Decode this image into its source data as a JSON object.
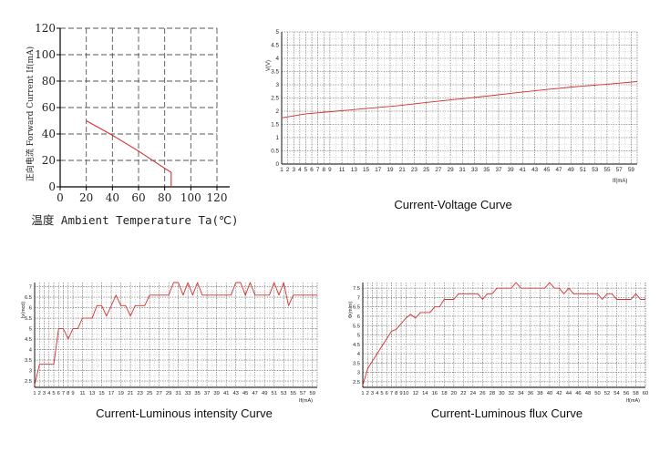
{
  "colors": {
    "curve": "#d43030",
    "grid": "#555555",
    "axis": "#000000"
  },
  "chart_data": [
    {
      "type": "line",
      "xlabel": "温度 Ambient Temperature Ta(℃)",
      "ylabel": "正向电流 Forward Current If(mA)",
      "x_ticks": [
        "0",
        "20",
        "40",
        "60",
        "80",
        "100",
        "120"
      ],
      "y_ticks": [
        "0",
        "20",
        "40",
        "60",
        "80",
        "100",
        "120"
      ],
      "xlim": [
        0,
        120
      ],
      "ylim": [
        0,
        120
      ],
      "grid": true,
      "x": [
        20,
        40,
        60,
        80,
        85,
        85
      ],
      "y": [
        50,
        39,
        27,
        14,
        11,
        0
      ]
    },
    {
      "type": "line",
      "caption": "Current-Voltage Curve",
      "xlabel": "If(mA)",
      "ylabel": "V(V)",
      "x_ticks": [
        "1",
        "2",
        "3",
        "4",
        "5",
        "6",
        "7",
        "8",
        "9",
        "11",
        "13",
        "15",
        "17",
        "19",
        "21",
        "23",
        "25",
        "27",
        "29",
        "31",
        "33",
        "35",
        "37",
        "39",
        "41",
        "43",
        "45",
        "47",
        "49",
        "51",
        "53",
        "55",
        "57",
        "59"
      ],
      "y_ticks": [
        "0",
        "0.5",
        "1",
        "1.5",
        "2",
        "2.5",
        "3",
        "3.5",
        "4",
        "4.5",
        "5"
      ],
      "xlim": [
        1,
        60
      ],
      "ylim": [
        0,
        5
      ],
      "grid": true,
      "x": [
        1,
        5,
        10,
        15,
        20,
        25,
        30,
        35,
        40,
        45,
        50,
        55,
        60
      ],
      "y": [
        1.75,
        1.9,
        2.0,
        2.1,
        2.2,
        2.33,
        2.45,
        2.57,
        2.7,
        2.82,
        2.93,
        3.02,
        3.12
      ]
    },
    {
      "type": "line",
      "caption": "Current-Luminous intensity Curve",
      "xlabel": "If(mA)",
      "ylabel": "Iv(mcd)",
      "x_ticks": [
        "1",
        "2",
        "3",
        "4",
        "5",
        "6",
        "7",
        "8",
        "9",
        "11",
        "13",
        "15",
        "17",
        "19",
        "21",
        "23",
        "25",
        "27",
        "29",
        "31",
        "33",
        "35",
        "37",
        "39",
        "41",
        "43",
        "45",
        "47",
        "49",
        "51",
        "53",
        "55",
        "57",
        "59"
      ],
      "y_ticks": [
        "2.5",
        "3",
        "3.5",
        "4",
        "4.5",
        "5",
        "5.5",
        "6",
        "6.5",
        "7"
      ],
      "xlim": [
        1,
        60
      ],
      "ylim": [
        2.2,
        7.2
      ],
      "grid": true,
      "x": [
        1,
        2,
        3,
        4,
        5,
        6,
        7,
        8,
        9,
        10,
        11,
        12,
        13,
        14,
        15,
        16,
        17,
        18,
        19,
        20,
        21,
        22,
        23,
        24,
        25,
        26,
        27,
        28,
        29,
        30,
        31,
        32,
        33,
        34,
        35,
        36,
        37,
        38,
        39,
        40,
        41,
        42,
        43,
        44,
        45,
        46,
        47,
        48,
        49,
        50,
        51,
        52,
        53,
        54,
        55,
        56,
        57,
        58,
        59,
        60
      ],
      "y": [
        2.3,
        3.3,
        3.3,
        3.3,
        3.3,
        5.0,
        5.0,
        4.5,
        5.0,
        5.0,
        5.5,
        5.5,
        5.5,
        6.1,
        6.1,
        5.6,
        6.1,
        6.6,
        6.1,
        6.1,
        5.6,
        6.1,
        6.1,
        6.1,
        6.6,
        6.6,
        6.6,
        6.6,
        6.6,
        7.2,
        7.2,
        6.6,
        7.2,
        6.6,
        7.2,
        6.6,
        6.6,
        6.6,
        6.6,
        6.6,
        6.6,
        6.6,
        7.2,
        7.2,
        6.6,
        7.2,
        6.6,
        6.6,
        6.6,
        6.6,
        7.2,
        6.6,
        7.2,
        6.1,
        6.6,
        6.6,
        6.6,
        6.6,
        6.6,
        6.6
      ]
    },
    {
      "type": "line",
      "caption": "Current-Luminous flux Curve",
      "xlabel": "If(mA)",
      "ylabel": "Φ(mlm)",
      "x_ticks": [
        "1",
        "2",
        "3",
        "4",
        "5",
        "6",
        "7",
        "8",
        "9",
        "10",
        "12",
        "14",
        "16",
        "18",
        "20",
        "22",
        "24",
        "26",
        "28",
        "30",
        "32",
        "34",
        "36",
        "38",
        "40",
        "42",
        "44",
        "46",
        "48",
        "50",
        "52",
        "54",
        "56",
        "58",
        "60"
      ],
      "y_ticks": [
        "2.5",
        "3",
        "3.5",
        "4",
        "4.5",
        "5",
        "5.5",
        "6",
        "6.5",
        "7",
        "7.5"
      ],
      "xlim": [
        1,
        60
      ],
      "ylim": [
        2.2,
        7.8
      ],
      "grid": true,
      "x": [
        1,
        2,
        3,
        4,
        5,
        6,
        7,
        8,
        9,
        10,
        11,
        12,
        13,
        14,
        15,
        16,
        17,
        18,
        19,
        20,
        21,
        22,
        23,
        24,
        25,
        26,
        27,
        28,
        29,
        30,
        31,
        32,
        33,
        34,
        35,
        36,
        37,
        38,
        39,
        40,
        41,
        42,
        43,
        44,
        45,
        46,
        47,
        48,
        49,
        50,
        51,
        52,
        53,
        54,
        55,
        56,
        57,
        58,
        59,
        60
      ],
      "y": [
        2.3,
        3.2,
        3.6,
        4.0,
        4.4,
        4.8,
        5.2,
        5.3,
        5.6,
        5.9,
        6.1,
        5.9,
        6.2,
        6.2,
        6.2,
        6.5,
        6.5,
        6.9,
        6.9,
        6.9,
        7.2,
        7.2,
        7.2,
        7.2,
        7.2,
        6.9,
        7.2,
        7.2,
        7.5,
        7.5,
        7.5,
        7.5,
        7.8,
        7.5,
        7.5,
        7.5,
        7.5,
        7.5,
        7.5,
        7.8,
        7.5,
        7.5,
        7.2,
        7.5,
        7.2,
        7.2,
        7.2,
        7.2,
        7.2,
        7.2,
        6.9,
        7.2,
        7.2,
        6.9,
        6.9,
        6.9,
        6.9,
        7.2,
        6.9,
        6.9
      ]
    }
  ]
}
